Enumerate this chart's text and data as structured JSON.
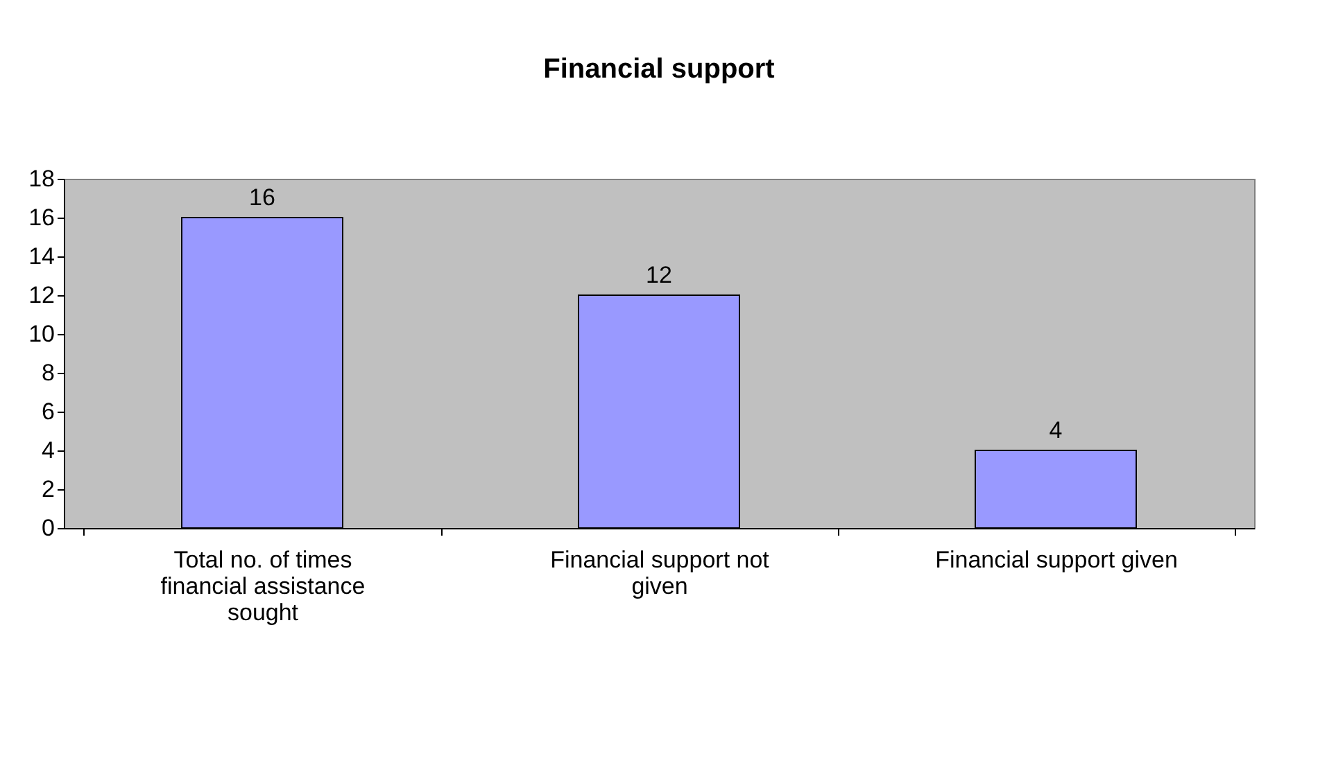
{
  "chart_data": {
    "type": "bar",
    "title": "Financial support",
    "categories": [
      "Total no. of times financial assistance sought",
      "Financial support not given",
      "Financial support given"
    ],
    "values": [
      16,
      12,
      4
    ],
    "color": "#9999ff",
    "ylim": [
      0,
      18
    ],
    "yticks": [
      0,
      2,
      4,
      6,
      8,
      10,
      12,
      14,
      16,
      18
    ],
    "data_labels": true
  }
}
